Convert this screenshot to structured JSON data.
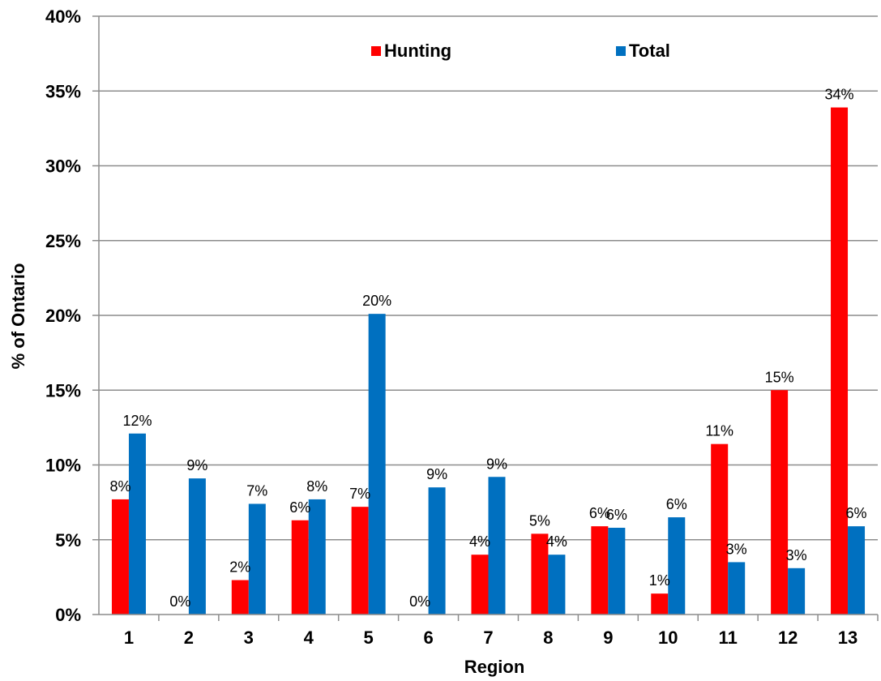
{
  "chart_data": {
    "type": "bar",
    "xlabel": "Region",
    "ylabel": "% of Ontario",
    "ylim": [
      0,
      40
    ],
    "y_ticks": [
      "0%",
      "5%",
      "10%",
      "15%",
      "20%",
      "25%",
      "30%",
      "35%",
      "40%"
    ],
    "grid": true,
    "legend_position": "top",
    "categories": [
      "1",
      "2",
      "3",
      "4",
      "5",
      "6",
      "7",
      "8",
      "9",
      "10",
      "11",
      "12",
      "13"
    ],
    "series": [
      {
        "name": "Hunting",
        "color": "#ff0000",
        "values": [
          7.7,
          0,
          2.3,
          6.3,
          7.2,
          0,
          4.0,
          5.4,
          5.9,
          1.4,
          11.4,
          15.0,
          33.9
        ],
        "labels": [
          "8%",
          "0%",
          "2%",
          "6%",
          "7%",
          "0%",
          "4%",
          "5%",
          "6%",
          "1%",
          "11%",
          "15%",
          "34%"
        ]
      },
      {
        "name": "Total",
        "color": "#0070c0",
        "values": [
          12.1,
          9.1,
          7.4,
          7.7,
          20.1,
          8.5,
          9.2,
          4.0,
          5.8,
          6.5,
          3.5,
          3.1,
          5.9
        ],
        "labels": [
          "12%",
          "9%",
          "7%",
          "8%",
          "20%",
          "9%",
          "9%",
          "4%",
          "6%",
          "6%",
          "3%",
          "3%",
          "6%"
        ]
      }
    ]
  }
}
